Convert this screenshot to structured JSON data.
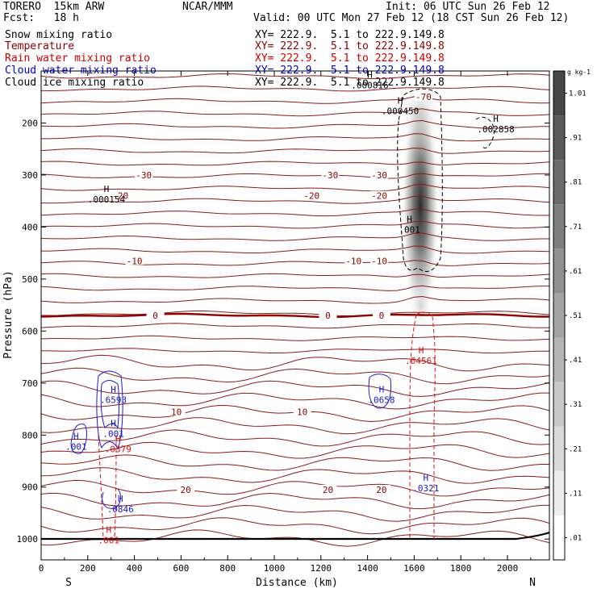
{
  "header": {
    "model": "TORERO  15km ARW",
    "org": "NCAR/MMM",
    "init": "Init: 06 UTC Sun 26 Feb 12",
    "fcst": "Fcst:   18 h",
    "valid": "Valid: 00 UTC Mon 27 Feb 12 (18 CST Sun 26 Feb 12)"
  },
  "fields": [
    {
      "name": "Snow mixing ratio",
      "xy": "XY= 222.9.  5.1 to 222.9.149.8",
      "color": "#000000"
    },
    {
      "name": "Temperature",
      "xy": "XY= 222.9.  5.1 to 222.9.149.8",
      "color": "#8b0000"
    },
    {
      "name": "Rain water mixing ratio",
      "xy": "XY= 222.9.  5.1 to 222.9.149.8",
      "color": "#cc0000"
    },
    {
      "name": "Cloud water mixing ratio",
      "xy": "XY= 222.9.  5.1 to 222.9.149.8",
      "color": "#0000cc"
    },
    {
      "name": "Cloud ice mixing ratio",
      "xy": "XY= 222.9.  5.1 to 222.9.149.8",
      "color": "#000000"
    }
  ],
  "chart_data": {
    "type": "cross-section",
    "xlabel": "Distance (km)",
    "ylabel": "Pressure (hPa)",
    "x_ticks": [
      0,
      200,
      400,
      600,
      800,
      1000,
      1200,
      1400,
      1600,
      1800,
      2000
    ],
    "x_range": [
      0,
      2180
    ],
    "y_ticks": [
      200,
      300,
      400,
      500,
      600,
      700,
      800,
      900,
      1000
    ],
    "y_range": [
      100,
      1040
    ],
    "x_end_labels": {
      "left": "S",
      "right": "N"
    },
    "colorbar": {
      "unit": "g kg-1",
      "labels": [
        "1.01",
        ".91",
        ".81",
        ".71",
        ".61",
        ".51",
        ".41",
        ".31",
        ".21",
        ".11",
        ".01"
      ]
    },
    "temperature_levels": [
      {
        "p": 150,
        "t": -70,
        "label": "-70",
        "label_x": 1640
      },
      {
        "p": 300,
        "t": -30,
        "labels": [
          {
            "text": "-30",
            "x": 440
          },
          {
            "text": "-30",
            "x": 1240
          },
          {
            "text": "-30",
            "x": 1450
          }
        ]
      },
      {
        "p": 340,
        "t": -20,
        "labels": [
          {
            "text": "-20",
            "x": 340
          },
          {
            "text": "-20",
            "x": 1160
          },
          {
            "text": "-20",
            "x": 1450
          }
        ]
      },
      {
        "p": 465,
        "t": -10,
        "labels": [
          {
            "text": "-10",
            "x": 400
          },
          {
            "text": "-10",
            "x": 1340
          },
          {
            "text": "-10",
            "x": 1450
          }
        ]
      },
      {
        "p": 570,
        "t": 0,
        "labels": [
          {
            "text": "0",
            "x": 490
          },
          {
            "text": "0",
            "x": 1230
          },
          {
            "text": "0",
            "x": 1460
          }
        ]
      },
      {
        "p": 755,
        "t": 10,
        "labels": [
          {
            "text": "10",
            "x": 580
          },
          {
            "text": "10",
            "x": 1120
          }
        ]
      },
      {
        "p": 905,
        "t": 20,
        "labels": [
          {
            "text": "20",
            "x": 620
          },
          {
            "text": "20",
            "x": 1230
          },
          {
            "text": "20",
            "x": 1460
          }
        ]
      }
    ],
    "extrema_labels": [
      {
        "field": "cloud_ice",
        "text": ".000154",
        "x": 280,
        "p": 350
      },
      {
        "field": "cloud_ice",
        "text": ".000450",
        "x": 1540,
        "p": 180
      },
      {
        "field": "cloud_ice",
        "text": ".002858",
        "x": 1950,
        "p": 215
      },
      {
        "field": "cloud_ice",
        "text": ".000816",
        "x": 1410,
        "p": 130
      },
      {
        "field": "snow",
        "text": ".001",
        "x": 1580,
        "p": 408
      },
      {
        "field": "rain",
        "text": ".04561",
        "x": 1630,
        "p": 660
      },
      {
        "field": "rain",
        "text": ".0379",
        "x": 330,
        "p": 830
      },
      {
        "field": "rain",
        "text": ".001",
        "x": 290,
        "p": 1005
      },
      {
        "field": "cloud_water",
        "text": ".6593",
        "x": 310,
        "p": 735
      },
      {
        "field": "cloud_water",
        "text": ".001",
        "x": 310,
        "p": 800
      },
      {
        "field": "cloud_water",
        "text": ".001",
        "x": 150,
        "p": 825
      },
      {
        "field": "cloud_water",
        "text": ".0846",
        "x": 340,
        "p": 945
      },
      {
        "field": "cloud_water",
        "text": ".0658",
        "x": 1460,
        "p": 735
      },
      {
        "field": "cloud_water",
        "text": ".0321",
        "x": 1650,
        "p": 905
      }
    ]
  }
}
